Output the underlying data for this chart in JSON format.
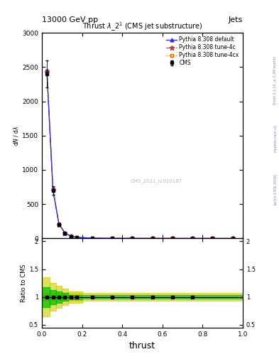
{
  "title": "13000 GeV pp",
  "title_right": "Jets",
  "plot_title": "Thrust $\\lambda\\_2^1$ (CMS jet substructure)",
  "xlabel": "thrust",
  "ylabel_main": "1 / $\\mathrm{d}N$ / $\\mathrm{d}\\lambda$",
  "ylabel_ratio": "Ratio to CMS",
  "watermark": "CMS_2021_I1920187",
  "rivet_text": "Rivet 3.1.10, ≥ 3.2M events",
  "arxiv_text": "[arXiv:1306.3436]",
  "mcplots_text": "mcplots.cern.ch",
  "cms_x": [
    0.025,
    0.055,
    0.085,
    0.115,
    0.145,
    0.175,
    0.25,
    0.35,
    0.45,
    0.55,
    0.65,
    0.75,
    0.85,
    0.95
  ],
  "cms_y": [
    2400,
    700,
    200,
    80,
    30,
    15,
    5,
    2,
    1,
    0.5,
    0.3,
    0.2,
    0.15,
    0.1
  ],
  "cms_yerr": [
    200,
    60,
    20,
    8,
    3,
    2,
    0.8,
    0.4,
    0.2,
    0.1,
    0.05,
    0.04,
    0.03,
    0.02
  ],
  "pythia_x": [
    0.025,
    0.055,
    0.085,
    0.115,
    0.145,
    0.175,
    0.25,
    0.35,
    0.45,
    0.55,
    0.65,
    0.75,
    0.85,
    0.95
  ],
  "pythia_default_y": [
    2450,
    720,
    210,
    82,
    32,
    16,
    5.2,
    2.1,
    1.05,
    0.52,
    0.32,
    0.21,
    0.16,
    0.11
  ],
  "pythia_4c_y": [
    2430,
    710,
    205,
    80,
    31,
    15.5,
    5.1,
    2.05,
    1.02,
    0.51,
    0.31,
    0.2,
    0.155,
    0.105
  ],
  "pythia_4cx_y": [
    2440,
    715,
    207,
    81,
    31.5,
    15.7,
    5.15,
    2.07,
    1.03,
    0.515,
    0.315,
    0.205,
    0.157,
    0.107
  ],
  "ylim_main": [
    0,
    3000
  ],
  "yticks_main": [
    0,
    500,
    1000,
    1500,
    2000,
    2500,
    3000
  ],
  "xlim": [
    0.0,
    1.0
  ],
  "ratio_x": [
    0.025,
    0.055,
    0.085,
    0.115,
    0.145,
    0.175,
    0.25,
    0.35,
    0.45,
    0.55,
    0.65,
    0.75
  ],
  "ratio_y": [
    1.0,
    1.0,
    1.0,
    1.0,
    1.0,
    1.0,
    1.0,
    1.0,
    1.0,
    1.0,
    1.0,
    1.0
  ],
  "ratio_green_lo": 0.97,
  "ratio_green_hi": 1.03,
  "ratio_yellow_lo": 0.93,
  "ratio_yellow_hi": 1.07,
  "ratio_box_x_edges": [
    0.0,
    0.04,
    0.07,
    0.1,
    0.13,
    0.2
  ],
  "ratio_box_yellow_lo": [
    0.65,
    0.75,
    0.8,
    0.85,
    0.9,
    0.93
  ],
  "ratio_box_yellow_hi": [
    1.35,
    1.25,
    1.2,
    1.15,
    1.1,
    1.07
  ],
  "ratio_box_green_lo": [
    0.82,
    0.87,
    0.9,
    0.93,
    0.96,
    0.97
  ],
  "ratio_box_green_hi": [
    1.18,
    1.13,
    1.1,
    1.07,
    1.04,
    1.03
  ],
  "ylim_ratio": [
    0.45,
    2.05
  ],
  "yticks_ratio": [
    0.5,
    1.0,
    1.5,
    2.0
  ],
  "color_cms": "#000000",
  "color_default": "#3333cc",
  "color_4c": "#cc3333",
  "color_4cx": "#cc6600",
  "color_green_band": "#00bb00",
  "color_yellow_band": "#cccc00",
  "background_color": "#ffffff"
}
